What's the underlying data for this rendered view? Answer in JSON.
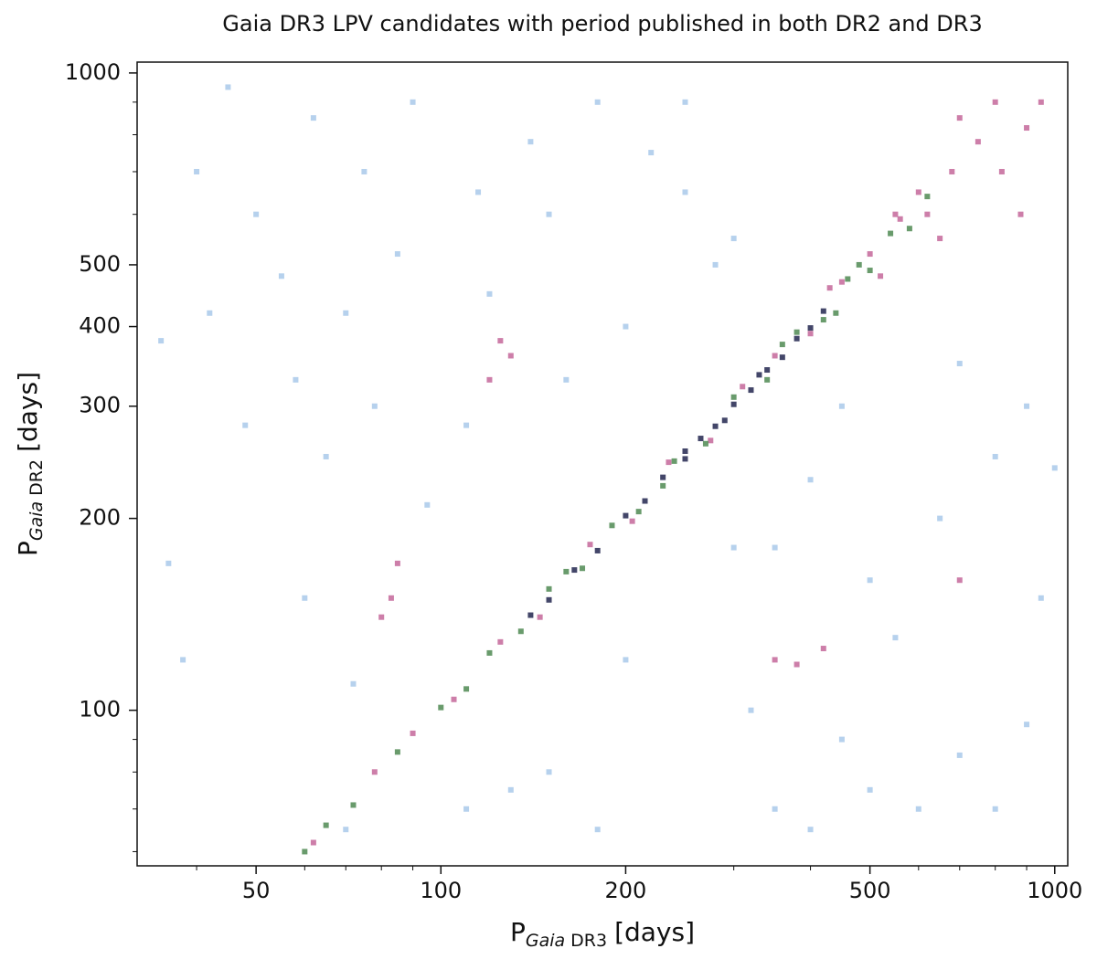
{
  "chart_data": {
    "type": "scatter",
    "title": "Gaia DR3 LPV candidates with period published in both DR2 and DR3",
    "xlabel": {
      "symbol": "P",
      "sub_italic": "Gaia",
      "sub": "DR3",
      "unit": "[days]"
    },
    "ylabel": {
      "symbol": "P",
      "sub_italic": "Gaia",
      "sub": "DR2",
      "unit": "[days]"
    },
    "xscale": "log",
    "yscale": "log",
    "xlim": [
      32,
      1050
    ],
    "ylim": [
      57,
      1040
    ],
    "xticks": [
      50,
      100,
      200,
      500,
      1000
    ],
    "yticks": [
      100,
      200,
      300,
      400,
      500,
      1000
    ],
    "xminorticks": [
      40,
      60,
      70,
      80,
      90,
      300,
      400,
      600,
      700,
      800,
      900
    ],
    "yminorticks": [
      60,
      70,
      80,
      90,
      600,
      700,
      800,
      900
    ],
    "series": [
      {
        "color": "#a9c9ea",
        "x": [
          35,
          36,
          38,
          40,
          42,
          45,
          48,
          50,
          55,
          58,
          60,
          62,
          65,
          70,
          72,
          75,
          78,
          85,
          90,
          95,
          110,
          115,
          120,
          140,
          150,
          160,
          130,
          150,
          180,
          200,
          220,
          250,
          280,
          300,
          320,
          350,
          400,
          450,
          500,
          600,
          700,
          800,
          900,
          950,
          1000,
          900,
          800,
          700,
          650,
          550,
          500,
          450,
          400,
          350,
          300,
          250,
          200,
          180,
          110,
          70
        ],
        "y": [
          380,
          170,
          120,
          700,
          420,
          950,
          280,
          600,
          480,
          330,
          150,
          850,
          250,
          420,
          110,
          700,
          300,
          520,
          900,
          210,
          280,
          650,
          450,
          780,
          600,
          330,
          75,
          80,
          65,
          400,
          750,
          900,
          500,
          180,
          100,
          70,
          65,
          90,
          75,
          70,
          85,
          70,
          95,
          150,
          240,
          300,
          250,
          350,
          200,
          130,
          160,
          300,
          230,
          180,
          550,
          650,
          120,
          900,
          70,
          65
        ]
      },
      {
        "color": "#c4679a",
        "x": [
          62,
          78,
          90,
          105,
          125,
          145,
          175,
          205,
          235,
          275,
          310,
          350,
          400,
          450,
          500,
          560,
          620,
          680,
          750,
          820,
          900,
          950,
          700,
          600,
          650,
          800,
          880,
          520,
          430,
          550,
          130,
          125,
          120,
          80,
          83,
          85,
          350,
          380,
          420,
          700
        ],
        "y": [
          62,
          80,
          92,
          104,
          128,
          140,
          182,
          198,
          245,
          265,
          322,
          360,
          390,
          470,
          520,
          590,
          600,
          700,
          780,
          700,
          820,
          900,
          850,
          650,
          550,
          900,
          600,
          480,
          460,
          600,
          360,
          380,
          330,
          140,
          150,
          170,
          120,
          118,
          125,
          160
        ]
      },
      {
        "color": "#4f8a52",
        "x": [
          60,
          65,
          72,
          85,
          100,
          110,
          120,
          135,
          150,
          170,
          190,
          210,
          240,
          270,
          300,
          340,
          380,
          420,
          460,
          500,
          540,
          580,
          620,
          480,
          440,
          360,
          230,
          160
        ],
        "y": [
          60,
          66,
          71,
          86,
          101,
          108,
          123,
          133,
          155,
          167,
          195,
          205,
          246,
          262,
          310,
          330,
          392,
          410,
          475,
          490,
          560,
          570,
          640,
          500,
          420,
          375,
          225,
          165
        ]
      },
      {
        "color": "#22264f",
        "x": [
          140,
          150,
          165,
          180,
          200,
          215,
          230,
          250,
          265,
          280,
          300,
          320,
          340,
          360,
          380,
          400,
          420,
          250,
          290,
          330
        ],
        "y": [
          141,
          149,
          166,
          178,
          202,
          213,
          232,
          248,
          267,
          279,
          302,
          318,
          342,
          358,
          383,
          398,
          423,
          255,
          285,
          336
        ]
      }
    ]
  }
}
